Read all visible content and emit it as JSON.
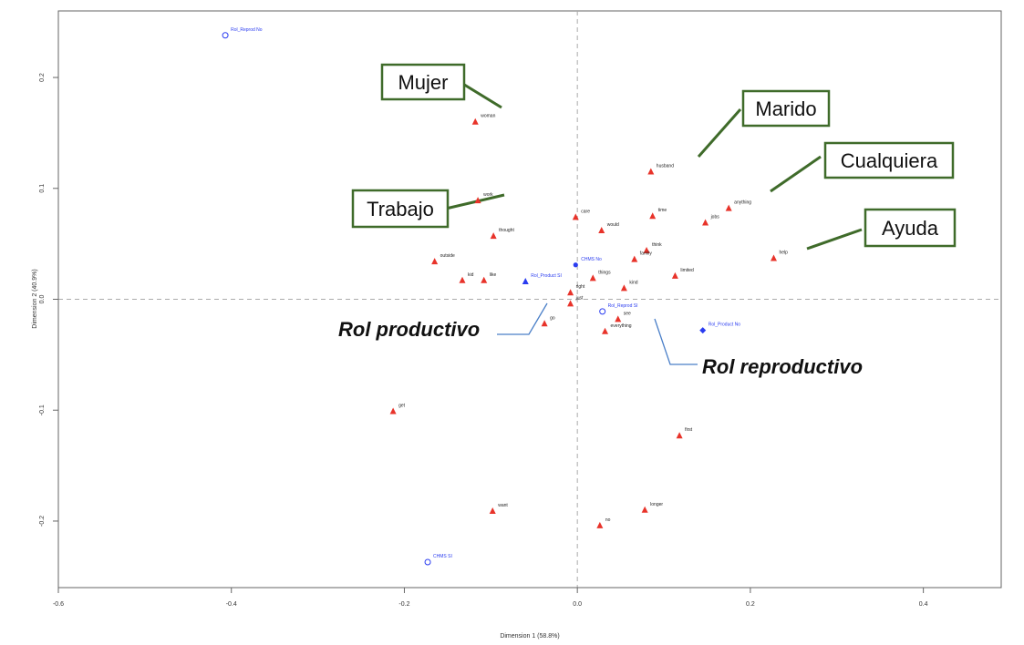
{
  "chart_data": {
    "type": "scatter",
    "title": "",
    "xlabel": "Dimension 1 (58.8%)",
    "ylabel": "Dimension 2 (40.9%)",
    "xlim": [
      -0.6,
      0.49
    ],
    "ylim": [
      -0.26,
      0.26
    ],
    "x_ticks": [
      -0.6,
      -0.4,
      -0.2,
      0.0,
      0.2,
      0.4
    ],
    "x_tick_labels": [
      "-0.6",
      "-0.4",
      "-0.2",
      "0.0",
      "0.2",
      "0.4"
    ],
    "y_ticks": [
      -0.2,
      -0.1,
      0.0,
      0.1,
      0.2
    ],
    "y_tick_labels": [
      "-0.2",
      "-0.1",
      "0.0",
      "0.1",
      "0.2"
    ],
    "reference_lines": {
      "x": 0,
      "y": 0,
      "style": "dashed"
    },
    "grid": false,
    "colors": {
      "words": "#e8332a",
      "categories": "#2a3cf0",
      "callout_border": "#3f6b2a",
      "callout_line": "#3f6b2a",
      "rol_line": "#4a7fc8"
    },
    "series": [
      {
        "name": "",
        "marker": "triangle",
        "points": [
          {
            "label": "woman",
            "x": -0.118,
            "y": 0.16
          },
          {
            "label": "husband",
            "x": 0.085,
            "y": 0.115
          },
          {
            "label": "work",
            "x": -0.115,
            "y": 0.089
          },
          {
            "label": "anything",
            "x": 0.175,
            "y": 0.082
          },
          {
            "label": "time",
            "x": 0.087,
            "y": 0.075
          },
          {
            "label": "care",
            "x": -0.002,
            "y": 0.074
          },
          {
            "label": "jobs",
            "x": 0.148,
            "y": 0.069
          },
          {
            "label": "would",
            "x": 0.028,
            "y": 0.062
          },
          {
            "label": "thought",
            "x": -0.097,
            "y": 0.057
          },
          {
            "label": "think",
            "x": 0.08,
            "y": 0.044
          },
          {
            "label": "help",
            "x": 0.227,
            "y": 0.037
          },
          {
            "label": "family",
            "x": 0.066,
            "y": 0.036
          },
          {
            "label": "outside",
            "x": -0.165,
            "y": 0.034
          },
          {
            "label": "limited",
            "x": 0.113,
            "y": 0.021
          },
          {
            "label": "things",
            "x": 0.018,
            "y": 0.019
          },
          {
            "label": "kid",
            "x": -0.133,
            "y": 0.017
          },
          {
            "label": "like",
            "x": -0.108,
            "y": 0.017
          },
          {
            "label": "kind",
            "x": 0.054,
            "y": 0.01
          },
          {
            "label": "right",
            "x": -0.008,
            "y": 0.006
          },
          {
            "label": "just",
            "x": -0.008,
            "y": -0.004
          },
          {
            "label": "go",
            "x": -0.038,
            "y": -0.022
          },
          {
            "label": "see",
            "x": 0.047,
            "y": -0.018
          },
          {
            "label": "everything",
            "x": 0.032,
            "y": -0.029
          },
          {
            "label": "get",
            "x": -0.213,
            "y": -0.101
          },
          {
            "label": "first",
            "x": 0.118,
            "y": -0.123
          },
          {
            "label": "want",
            "x": -0.098,
            "y": -0.191
          },
          {
            "label": "longer",
            "x": 0.078,
            "y": -0.19
          },
          {
            "label": "no",
            "x": 0.026,
            "y": -0.204
          }
        ]
      },
      {
        "name": "",
        "marker": "mixed",
        "points": [
          {
            "label": "Rol_Reprod No",
            "x": -0.407,
            "y": 0.238,
            "shape": "open-circle"
          },
          {
            "label": "Rol_Product SI",
            "x": -0.06,
            "y": 0.016,
            "shape": "filled-triangle"
          },
          {
            "label": "CHMS No",
            "x": -0.002,
            "y": 0.031,
            "shape": "filled-circle"
          },
          {
            "label": "Rol_Reprod SI",
            "x": 0.029,
            "y": -0.011,
            "shape": "open-circle"
          },
          {
            "label": "Rol_Product No",
            "x": 0.145,
            "y": -0.028,
            "shape": "filled-diamond"
          },
          {
            "label": "CHMS SI",
            "x": -0.173,
            "y": -0.237,
            "shape": "open-circle"
          }
        ]
      }
    ],
    "annotations": [
      {
        "text": "Mujer",
        "points_to": "woman",
        "style": "box"
      },
      {
        "text": "Marido",
        "points_to": "husband",
        "style": "box"
      },
      {
        "text": "Cualquiera",
        "points_to": "anything",
        "style": "box"
      },
      {
        "text": "Trabajo",
        "points_to": "work",
        "style": "box"
      },
      {
        "text": "Ayuda",
        "points_to": "help",
        "style": "box"
      },
      {
        "text": "Rol productivo",
        "points_to": "Rol_Product SI",
        "style": "bold-italic"
      },
      {
        "text": "Rol reproductivo",
        "points_to": "Rol_Reprod SI",
        "style": "bold-italic"
      }
    ]
  }
}
